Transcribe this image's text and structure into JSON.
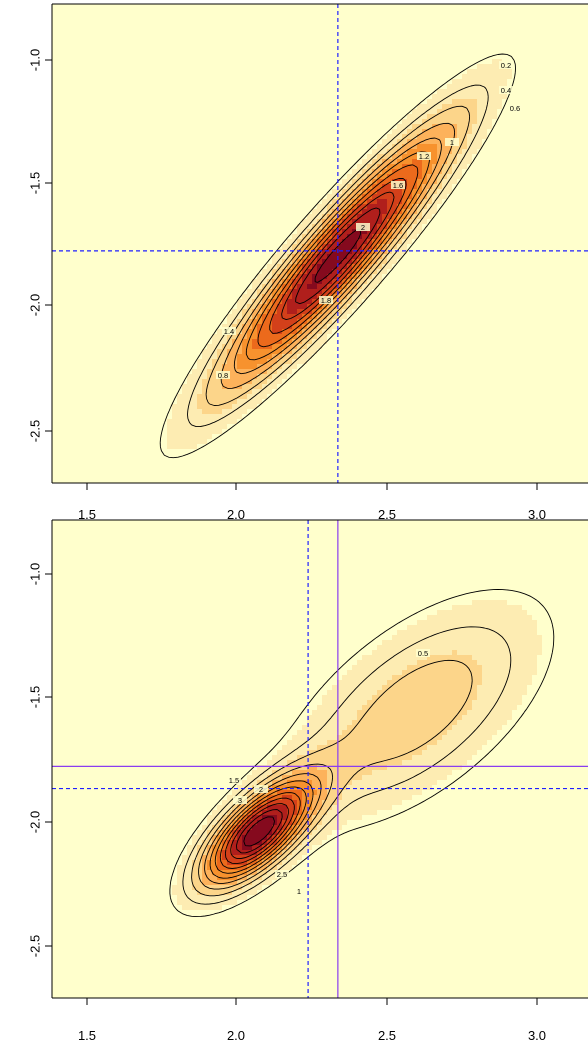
{
  "chart_data": [
    {
      "type": "heatmap",
      "title": "",
      "xlabel": "",
      "ylabel": "",
      "xlim": [
        1.38,
        3.18
      ],
      "ylim": [
        -2.72,
        -0.78
      ],
      "x_ticks": [
        "1.5",
        "2.0",
        "2.5",
        "3.0"
      ],
      "y_ticks": [
        "-1.0",
        "-1.5",
        "-2.0",
        "-2.5"
      ],
      "grid": false,
      "legend": "none",
      "colors": {
        "background": "#ffffcc",
        "fill_levels": [
          "#ffffcc",
          "#fdecb2",
          "#fcd58a",
          "#fdb25b",
          "#f7922e",
          "#ec6a1c",
          "#d3401a",
          "#b01f1c",
          "#850a1e"
        ],
        "contour_line": "#000000",
        "marker_line": "#1f1fff"
      },
      "density_mode": {
        "x": 2.34,
        "y": -1.8
      },
      "density_sd": {
        "x": 0.27,
        "y": 0.37
      },
      "density_correlation": 0.93,
      "density_peak": 2.3,
      "contour_levels": [
        0.2,
        0.4,
        0.6,
        0.8,
        1.0,
        1.2,
        1.4,
        1.6,
        1.8,
        2.0,
        2.2
      ],
      "contour_labels": [
        "0.2",
        "0.4",
        "0.6",
        "1",
        "1.2",
        "1.6",
        "2",
        "1.8",
        "1.4",
        "0.8"
      ],
      "reference_lines": [
        {
          "axis": "x",
          "value": 2.34,
          "style": "dashed",
          "color": "#1f1fff"
        },
        {
          "axis": "y",
          "value": -1.78,
          "style": "dashed",
          "color": "#1f1fff"
        }
      ]
    },
    {
      "type": "heatmap",
      "title": "",
      "xlabel": "",
      "ylabel": "",
      "xlim": [
        1.38,
        3.18
      ],
      "ylim": [
        -2.72,
        -0.78
      ],
      "x_ticks": [
        "1.5",
        "2.0",
        "2.5",
        "3.0"
      ],
      "y_ticks": [
        "-1.0",
        "-1.5",
        "-2.0",
        "-2.5"
      ],
      "grid": false,
      "legend": "none",
      "colors": {
        "background": "#ffffcc",
        "fill_levels": [
          "#ffffcc",
          "#fdecb2",
          "#fcd58a",
          "#fdb25b",
          "#f7922e",
          "#ec6a1c",
          "#d3401a",
          "#b01f1c",
          "#850a1e"
        ],
        "contour_line": "#000000",
        "marker_line": "#1f1fff",
        "solid_line": "#8a3df0"
      },
      "density_mode": {
        "x": 2.07,
        "y": -2.05
      },
      "density_sd": {
        "x": 0.13,
        "y": 0.15
      },
      "density_correlation": 0.7,
      "density_peak": 6.2,
      "secondary_mode": {
        "x": 2.6,
        "y": -1.55,
        "weight": 0.55
      },
      "contour_levels": [
        0.5,
        1,
        1.5,
        2,
        2.5,
        3,
        3.5,
        4,
        4.5,
        5,
        5.5,
        6
      ],
      "contour_labels": [
        "0.5",
        "1.5",
        "2",
        "3",
        "2.5",
        "1"
      ],
      "reference_lines": [
        {
          "axis": "x",
          "value": 2.24,
          "style": "dashed",
          "color": "#1f1fff"
        },
        {
          "axis": "y",
          "value": -1.87,
          "style": "dashed",
          "color": "#1f1fff"
        },
        {
          "axis": "x",
          "value": 2.34,
          "style": "solid",
          "color": "#8a3df0"
        },
        {
          "axis": "y",
          "value": -1.78,
          "style": "solid",
          "color": "#8a3df0"
        }
      ]
    }
  ]
}
